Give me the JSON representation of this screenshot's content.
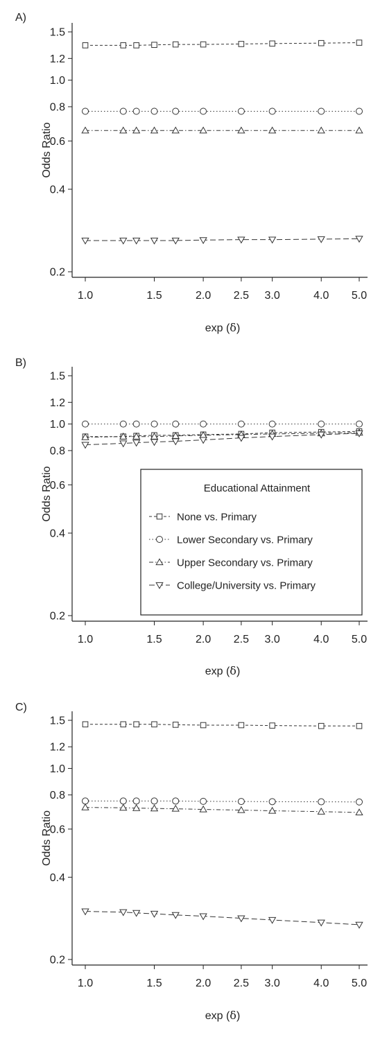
{
  "chart_data": [
    {
      "type": "line",
      "panel_label": "A)",
      "xlabel_prefix": "exp (",
      "xlabel_symbol": "δ",
      "xlabel_suffix": ")",
      "ylabel": "Odds Ratio",
      "xscale": "log",
      "yscale": "log",
      "xlim": [
        1.0,
        5.0
      ],
      "ylim": [
        0.19,
        1.6
      ],
      "x_ticks": [
        "1.0",
        "1.5",
        "2.0",
        "2.5",
        "3.0",
        "4.0",
        "5.0"
      ],
      "y_ticks": [
        "0.2",
        "0.4",
        "0.6",
        "0.8",
        "1.0",
        "1.2",
        "1.5"
      ],
      "x": [
        1.0,
        1.25,
        1.35,
        1.5,
        1.7,
        2.0,
        2.5,
        3.0,
        4.0,
        5.0
      ],
      "legend": null,
      "series": [
        {
          "marker": "square",
          "dash": "4,3",
          "values": [
            1.34,
            1.34,
            1.34,
            1.345,
            1.35,
            1.35,
            1.355,
            1.36,
            1.365,
            1.37
          ]
        },
        {
          "marker": "circle",
          "dash": "1.5,3",
          "values": [
            0.77,
            0.77,
            0.77,
            0.77,
            0.77,
            0.77,
            0.77,
            0.77,
            0.77,
            0.77
          ]
        },
        {
          "marker": "triangle-up",
          "dash": "6,3,1.5,3",
          "values": [
            0.655,
            0.655,
            0.655,
            0.655,
            0.655,
            0.655,
            0.655,
            0.655,
            0.655,
            0.655
          ]
        },
        {
          "marker": "triangle-down",
          "dash": "8,4",
          "values": [
            0.26,
            0.26,
            0.26,
            0.26,
            0.26,
            0.261,
            0.262,
            0.262,
            0.263,
            0.264
          ]
        }
      ]
    },
    {
      "type": "line",
      "panel_label": "B)",
      "xlabel_prefix": "exp (",
      "xlabel_symbol": "δ",
      "xlabel_suffix": ")",
      "ylabel": "Odds Ratio",
      "xscale": "log",
      "yscale": "log",
      "xlim": [
        1.0,
        5.0
      ],
      "ylim": [
        0.19,
        1.6
      ],
      "x_ticks": [
        "1.0",
        "1.5",
        "2.0",
        "2.5",
        "3.0",
        "4.0",
        "5.0"
      ],
      "y_ticks": [
        "0.2",
        "0.4",
        "0.6",
        "0.8",
        "1.0",
        "1.2",
        "1.5"
      ],
      "x": [
        1.0,
        1.25,
        1.35,
        1.5,
        1.7,
        2.0,
        2.5,
        3.0,
        4.0,
        5.0
      ],
      "legend": {
        "title": "Educational Attainment",
        "placement": "bottom-right",
        "entries": [
          "None vs. Primary",
          "Lower Secondary vs. Primary",
          "Upper Secondary vs. Primary",
          "College/University vs. Primary"
        ]
      },
      "series": [
        {
          "marker": "square",
          "dash": "4,3",
          "values": [
            0.9,
            0.9,
            0.905,
            0.91,
            0.91,
            0.915,
            0.92,
            0.93,
            0.935,
            0.94
          ]
        },
        {
          "marker": "circle",
          "dash": "1.5,3",
          "values": [
            1.0,
            1.0,
            1.0,
            1.0,
            1.0,
            1.0,
            1.0,
            1.0,
            1.0,
            1.0
          ]
        },
        {
          "marker": "triangle-up",
          "dash": "6,3,1.5,3",
          "values": [
            0.895,
            0.9,
            0.9,
            0.9,
            0.905,
            0.91,
            0.915,
            0.92,
            0.925,
            0.93
          ]
        },
        {
          "marker": "triangle-down",
          "dash": "8,4",
          "values": [
            0.84,
            0.85,
            0.855,
            0.86,
            0.865,
            0.875,
            0.89,
            0.9,
            0.915,
            0.925
          ]
        }
      ]
    },
    {
      "type": "line",
      "panel_label": "C)",
      "xlabel_prefix": "exp (",
      "xlabel_symbol": "δ",
      "xlabel_suffix": ")",
      "ylabel": "Odds Ratio",
      "xscale": "log",
      "yscale": "log",
      "xlim": [
        1.0,
        5.0
      ],
      "ylim": [
        0.19,
        1.6
      ],
      "x_ticks": [
        "1.0",
        "1.5",
        "2.0",
        "2.5",
        "3.0",
        "4.0",
        "5.0"
      ],
      "y_ticks": [
        "0.2",
        "0.4",
        "0.6",
        "0.8",
        "1.0",
        "1.2",
        "1.5"
      ],
      "x": [
        1.0,
        1.25,
        1.35,
        1.5,
        1.7,
        2.0,
        2.5,
        3.0,
        4.0,
        5.0
      ],
      "legend": null,
      "series": [
        {
          "marker": "square",
          "dash": "4,3",
          "values": [
            1.45,
            1.45,
            1.45,
            1.45,
            1.445,
            1.44,
            1.44,
            1.435,
            1.43,
            1.43
          ]
        },
        {
          "marker": "circle",
          "dash": "1.5,3",
          "values": [
            0.76,
            0.76,
            0.76,
            0.76,
            0.76,
            0.758,
            0.757,
            0.756,
            0.755,
            0.754
          ]
        },
        {
          "marker": "triangle-up",
          "dash": "6,3,1.5,3",
          "values": [
            0.72,
            0.718,
            0.716,
            0.714,
            0.712,
            0.708,
            0.704,
            0.7,
            0.695,
            0.69
          ]
        },
        {
          "marker": "triangle-down",
          "dash": "8,4",
          "values": [
            0.3,
            0.298,
            0.296,
            0.294,
            0.291,
            0.288,
            0.283,
            0.279,
            0.273,
            0.268
          ]
        }
      ]
    }
  ]
}
